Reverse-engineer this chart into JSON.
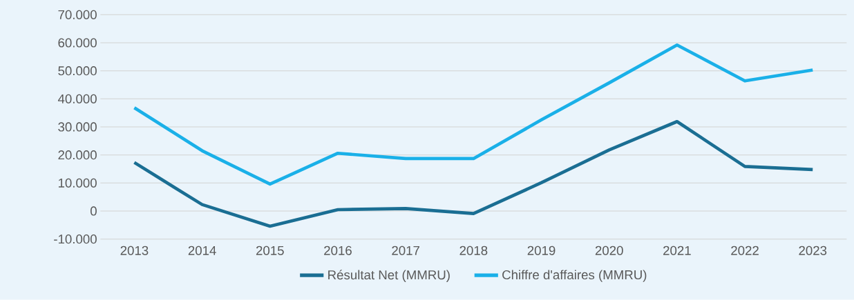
{
  "chart_data": {
    "type": "line",
    "categories": [
      "2013",
      "2014",
      "2015",
      "2016",
      "2017",
      "2018",
      "2019",
      "2020",
      "2021",
      "2022",
      "2023"
    ],
    "series": [
      {
        "name": "Résultat Net (MMRU)",
        "color": "#1a6e93",
        "values": [
          17300,
          2300,
          -5400,
          500,
          900,
          -900,
          10100,
          21800,
          31900,
          15900,
          14800
        ]
      },
      {
        "name": "Chiffre d'affaires (MMRU)",
        "color": "#1ab0e8",
        "values": [
          36800,
          21500,
          9600,
          20600,
          18700,
          18700,
          32500,
          45700,
          59200,
          46400,
          50300
        ]
      }
    ],
    "ylim": [
      -10000,
      70000
    ],
    "yticks": [
      {
        "value": -10000,
        "label": "-10.000"
      },
      {
        "value": 0,
        "label": "0"
      },
      {
        "value": 10000,
        "label": "10.000"
      },
      {
        "value": 20000,
        "label": "20.000"
      },
      {
        "value": 30000,
        "label": "30.000"
      },
      {
        "value": 40000,
        "label": "40.000"
      },
      {
        "value": 50000,
        "label": "50.000"
      },
      {
        "value": 60000,
        "label": "60.000"
      },
      {
        "value": 70000,
        "label": "70.000"
      }
    ],
    "grid": "y",
    "legend": "bottom",
    "line_style": "solid"
  }
}
